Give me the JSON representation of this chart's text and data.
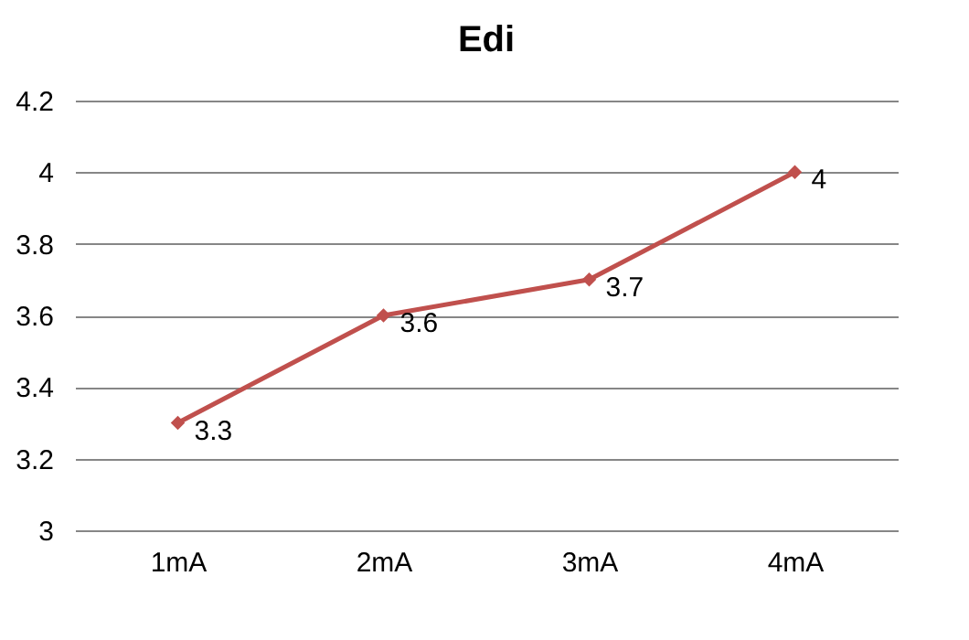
{
  "chart_data": {
    "type": "line",
    "title": "Edi",
    "categories": [
      "1mA",
      "2mA",
      "3mA",
      "4mA"
    ],
    "series": [
      {
        "color": "#c0504d",
        "values": [
          3.3,
          3.6,
          3.7,
          4
        ]
      }
    ],
    "ylim": [
      3,
      4.2
    ],
    "yticks": [
      3,
      3.2,
      3.4,
      3.6,
      3.8,
      4,
      4.2
    ],
    "grid": "y",
    "marker": "diamond",
    "line_style": "solid",
    "data_labels": true,
    "legend": false
  }
}
